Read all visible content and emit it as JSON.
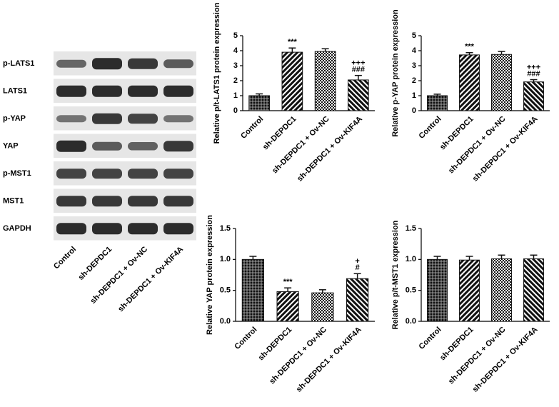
{
  "blot": {
    "rows": [
      "p-LATS1",
      "LATS1",
      "p-YAP",
      "YAP",
      "p-MST1",
      "MST1",
      "GAPDH"
    ],
    "lanes": [
      "Control",
      "sh-DEPDC1",
      "sh-DEPDC1 + Ov-NC",
      "sh-DEPDC1 + Ov-KIF4A"
    ]
  },
  "chart_data": [
    {
      "type": "bar",
      "y_label": "Relative p/t-LATS1 protein expression",
      "color": "#111111",
      "categories": [
        "Control",
        "sh-DEPDC1",
        "sh-DEPDC1 + Ov-NC",
        "sh-DEPDC1 + Ov-KIF4A"
      ],
      "values": [
        1.0,
        3.9,
        3.95,
        2.05
      ],
      "errors": [
        0.12,
        0.28,
        0.18,
        0.3
      ],
      "annotations": [
        null,
        [
          "***"
        ],
        null,
        [
          "+++",
          "###"
        ]
      ],
      "ylim": [
        0,
        5
      ],
      "yticks": [
        0,
        1,
        2,
        3,
        4,
        5
      ]
    },
    {
      "type": "bar",
      "y_label": "Relative p-YAP protein expression",
      "color": "#111111",
      "categories": [
        "Control",
        "sh-DEPDC1",
        "sh-DEPDC1 + Ov-NC",
        "sh-DEPDC1 + Ov-KIF4A"
      ],
      "values": [
        1.0,
        3.72,
        3.75,
        1.92
      ],
      "errors": [
        0.1,
        0.15,
        0.2,
        0.15
      ],
      "annotations": [
        null,
        [
          "***"
        ],
        null,
        [
          "+++",
          "###"
        ]
      ],
      "ylim": [
        0,
        5
      ],
      "yticks": [
        0,
        1,
        2,
        3,
        4,
        5
      ]
    },
    {
      "type": "bar",
      "y_label": "Relative YAP protein expression",
      "color": "#111111",
      "categories": [
        "Control",
        "sh-DEPDC1",
        "sh-DEPDC1 + Ov-NC",
        "sh-DEPDC1 + Ov-KIF4A"
      ],
      "values": [
        1.0,
        0.48,
        0.46,
        0.69
      ],
      "errors": [
        0.05,
        0.06,
        0.05,
        0.08
      ],
      "annotations": [
        null,
        [
          "***"
        ],
        null,
        [
          "+",
          "#"
        ]
      ],
      "ylim": [
        0,
        1.5
      ],
      "yticks": [
        {
          "value": 0,
          "label": "0.0"
        },
        {
          "value": 0.5,
          "label": "0.5"
        },
        {
          "value": 1,
          "label": "1.0"
        },
        {
          "value": 1.5,
          "label": "1.5"
        }
      ]
    },
    {
      "type": "bar",
      "y_label": "Relative p/t-MST1 expression",
      "color": "#111111",
      "categories": [
        "Control",
        "sh-DEPDC1",
        "sh-DEPDC1 + Ov-NC",
        "sh-DEPDC1 + Ov-KIF4A"
      ],
      "values": [
        1.0,
        0.99,
        1.01,
        1.01
      ],
      "errors": [
        0.05,
        0.06,
        0.06,
        0.06
      ],
      "annotations": [
        null,
        null,
        null,
        null
      ],
      "ylim": [
        0,
        1.5
      ],
      "yticks": [
        {
          "value": 0,
          "label": "0.0"
        },
        {
          "value": 0.5,
          "label": "0.5"
        },
        {
          "value": 1,
          "label": "1.0"
        },
        {
          "value": 1.5,
          "label": "1.5"
        }
      ]
    }
  ]
}
